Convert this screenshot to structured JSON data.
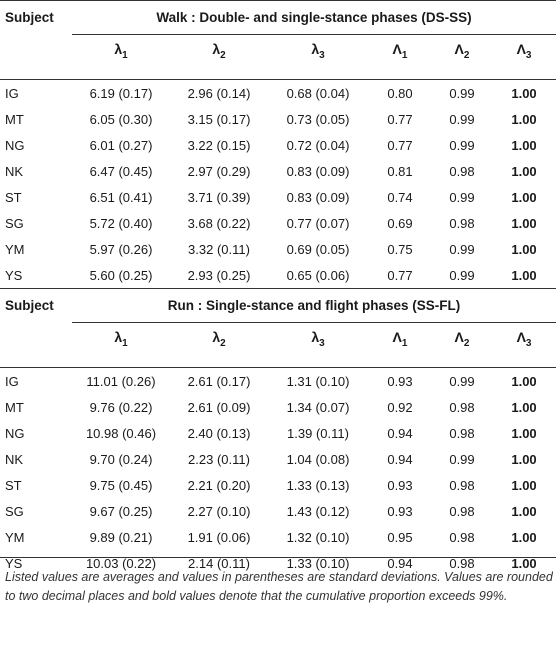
{
  "header_subject": "Subject",
  "sections": [
    {
      "title": "Walk : Double- and single-stance phases (DS-SS)",
      "rows": [
        [
          "IG",
          "6.19 (0.17)",
          "2.96 (0.14)",
          "0.68 (0.04)",
          "0.80",
          "0.99",
          "1.00"
        ],
        [
          "MT",
          "6.05 (0.30)",
          "3.15 (0.17)",
          "0.73 (0.05)",
          "0.77",
          "0.99",
          "1.00"
        ],
        [
          "NG",
          "6.01 (0.27)",
          "3.22 (0.15)",
          "0.72 (0.04)",
          "0.77",
          "0.99",
          "1.00"
        ],
        [
          "NK",
          "6.47 (0.45)",
          "2.97 (0.29)",
          "0.83 (0.09)",
          "0.81",
          "0.98",
          "1.00"
        ],
        [
          "ST",
          "6.51 (0.41)",
          "3.71 (0.39)",
          "0.83 (0.09)",
          "0.74",
          "0.99",
          "1.00"
        ],
        [
          "SG",
          "5.72 (0.40)",
          "3.68 (0.22)",
          "0.77 (0.07)",
          "0.69",
          "0.98",
          "1.00"
        ],
        [
          "YM",
          "5.97 (0.26)",
          "3.32 (0.11)",
          "0.69 (0.05)",
          "0.75",
          "0.99",
          "1.00"
        ],
        [
          "YS",
          "5.60 (0.25)",
          "2.93 (0.25)",
          "0.65 (0.06)",
          "0.77",
          "0.99",
          "1.00"
        ]
      ]
    },
    {
      "title": "Run : Single-stance and flight phases (SS-FL)",
      "rows": [
        [
          "IG",
          "11.01 (0.26)",
          "2.61 (0.17)",
          "1.31 (0.10)",
          "0.93",
          "0.99",
          "1.00"
        ],
        [
          "MT",
          "9.76 (0.22)",
          "2.61 (0.09)",
          "1.34 (0.07)",
          "0.92",
          "0.98",
          "1.00"
        ],
        [
          "NG",
          "10.98 (0.46)",
          "2.40 (0.13)",
          "1.39 (0.11)",
          "0.94",
          "0.98",
          "1.00"
        ],
        [
          "NK",
          "9.70 (0.24)",
          "2.23 (0.11)",
          "1.04 (0.08)",
          "0.94",
          "0.99",
          "1.00"
        ],
        [
          "ST",
          "9.75 (0.45)",
          "2.21 (0.20)",
          "1.33 (0.13)",
          "0.93",
          "0.98",
          "1.00"
        ],
        [
          "SG",
          "9.67 (0.25)",
          "2.27 (0.10)",
          "1.43 (0.12)",
          "0.93",
          "0.98",
          "1.00"
        ],
        [
          "YM",
          "9.89 (0.21)",
          "1.91 (0.06)",
          "1.32 (0.10)",
          "0.95",
          "0.98",
          "1.00"
        ],
        [
          "YS",
          "10.03 (0.22)",
          "2.14 (0.11)",
          "1.33 (0.10)",
          "0.94",
          "0.98",
          "1.00"
        ]
      ]
    }
  ],
  "greek_headers": {
    "lam1": "λ",
    "lam1_sub": "1",
    "lam2": "λ",
    "lam2_sub": "2",
    "lam3": "λ",
    "lam3_sub": "3",
    "Lam1": "Λ",
    "Lam1_sub": "1",
    "Lam2": "Λ",
    "Lam2_sub": "2",
    "Lam3": "Λ",
    "Lam3_sub": "3"
  },
  "note": "Listed values are averages and values in parentheses are standard deviations. Values are rounded to two decimal places and bold values denote that the cumulative proportion exceeds 99%."
}
